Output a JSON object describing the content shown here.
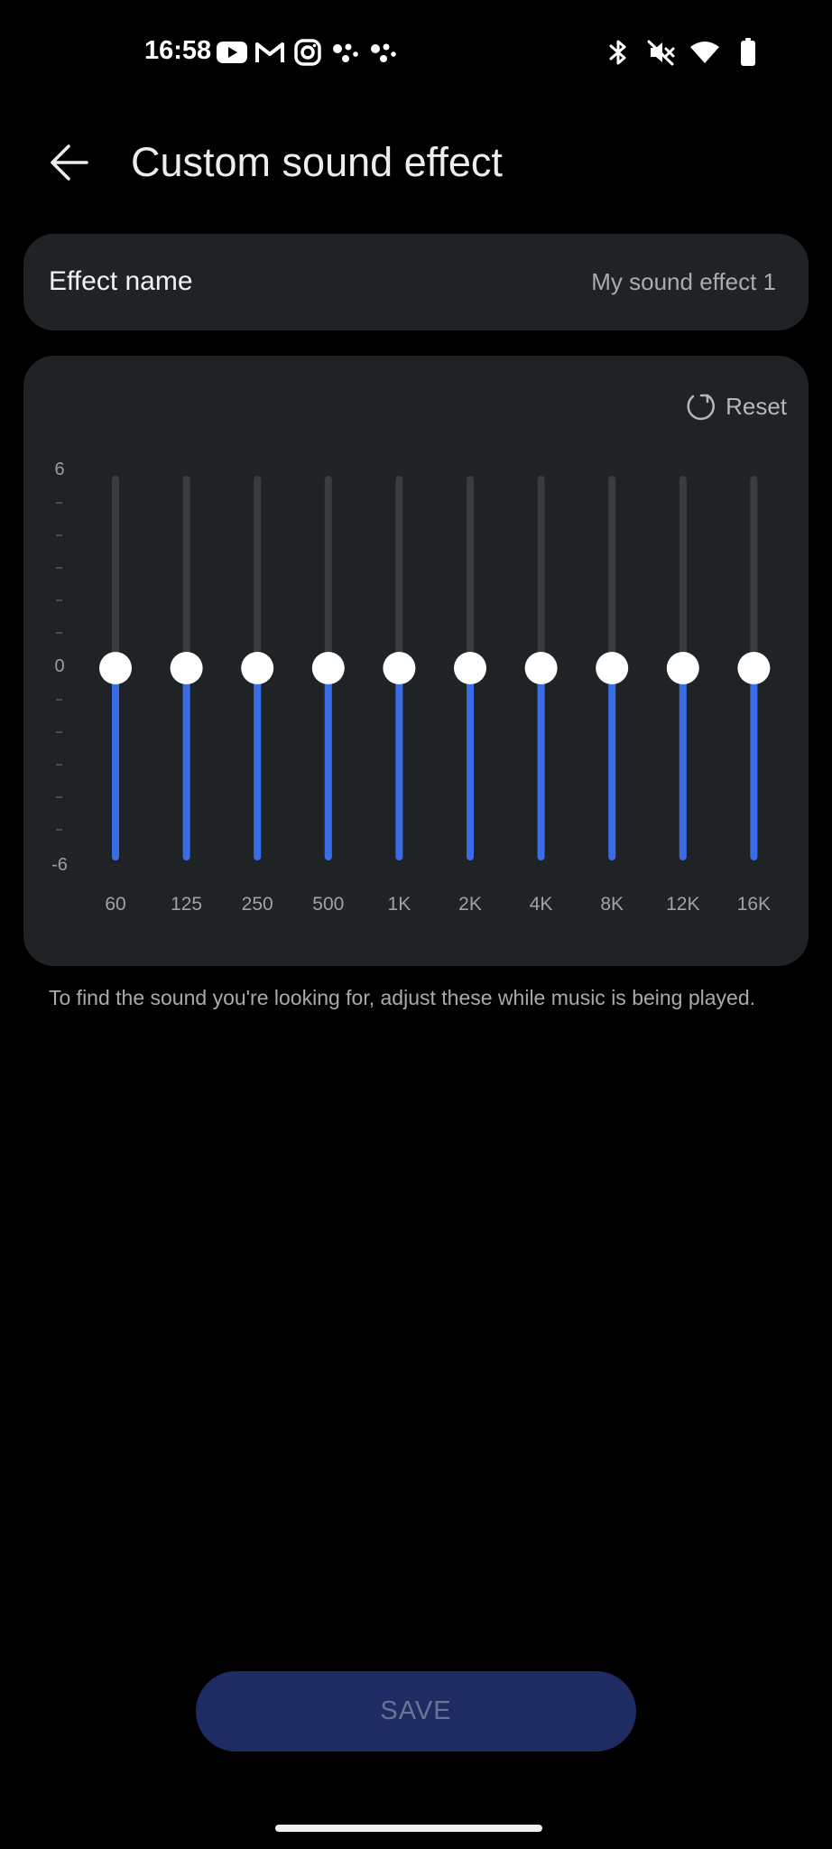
{
  "status_bar": {
    "time": "16:58",
    "left_icons": [
      "youtube-icon",
      "gmail-icon",
      "instagram-icon",
      "dots-app-icon",
      "dots-app-icon"
    ],
    "right_icons": [
      "bluetooth-icon",
      "mute-icon",
      "wifi-icon",
      "battery-icon"
    ]
  },
  "header": {
    "title": "Custom sound effect"
  },
  "effect_name": {
    "label": "Effect name",
    "value": "My sound effect 1"
  },
  "equalizer": {
    "reset_label": "Reset",
    "scale": {
      "max_label": "6",
      "zero_label": "0",
      "min_label": "-6",
      "min": -6,
      "max": 6
    },
    "bands": [
      {
        "label": "60",
        "value": 0
      },
      {
        "label": "125",
        "value": 0
      },
      {
        "label": "250",
        "value": 0
      },
      {
        "label": "500",
        "value": 0
      },
      {
        "label": "1K",
        "value": 0
      },
      {
        "label": "2K",
        "value": 0
      },
      {
        "label": "4K",
        "value": 0
      },
      {
        "label": "8K",
        "value": 0
      },
      {
        "label": "12K",
        "value": 0
      },
      {
        "label": "16K",
        "value": 0
      }
    ]
  },
  "hint": "To find the sound you're looking for, adjust these while music is being played.",
  "save_label": "SAVE",
  "colors": {
    "accent": "#3b6ce8",
    "card": "#202325",
    "track": "#3a3d40",
    "save_bg": "#1e2c63"
  }
}
